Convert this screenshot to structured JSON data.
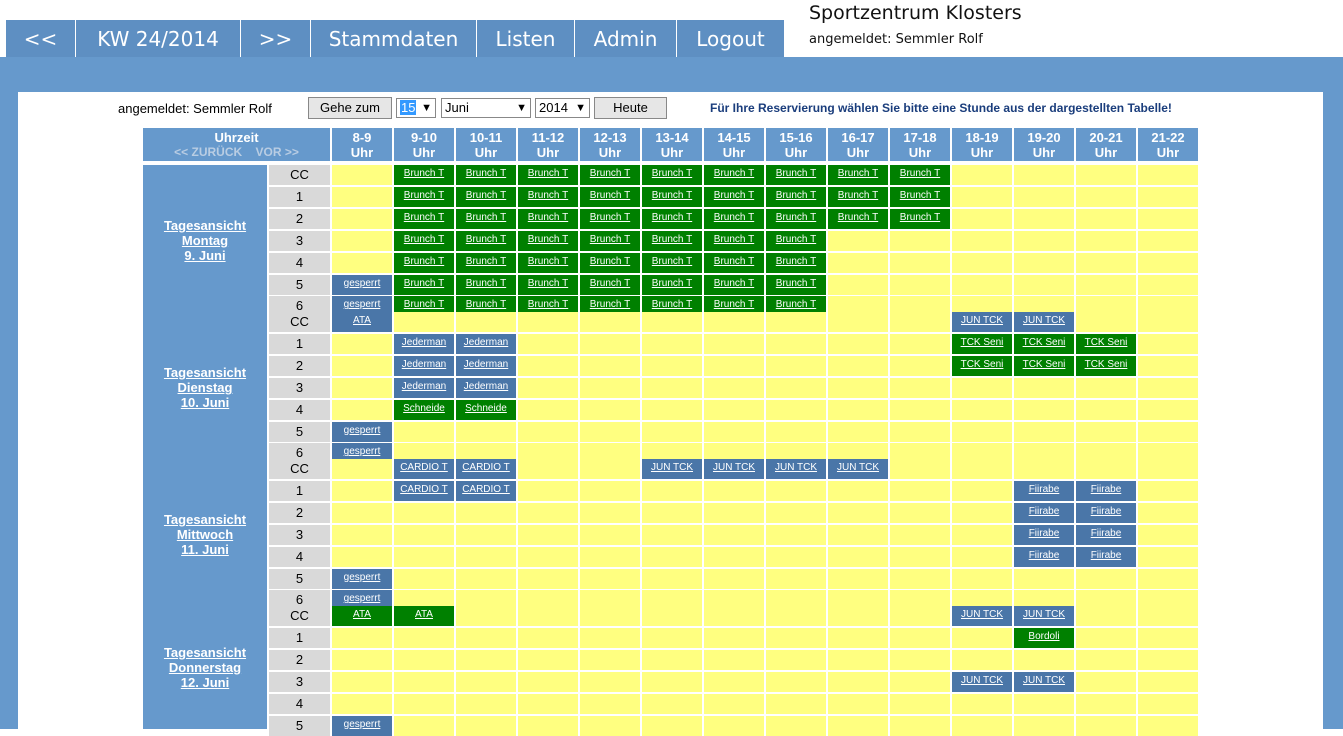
{
  "nav": {
    "prev": "<<",
    "week": "KW 24/2014",
    "next": ">>",
    "stammdaten": "Stammdaten",
    "listen": "Listen",
    "admin": "Admin",
    "logout": "Logout"
  },
  "site": {
    "title": "Sportzentrum Klosters",
    "user": "angemeldet: Semmler Rolf"
  },
  "controls": {
    "user": "angemeldet: Semmler Rolf",
    "goto_label": "Gehe zum",
    "day": "15",
    "month": "Juni",
    "year": "2014",
    "today_label": "Heute",
    "instruction": "Für Ihre Reservierung wählen Sie bitte eine Stunde aus der dargestellten Tabelle!"
  },
  "grid": {
    "time_header": "Uhrzeit",
    "back": "<< ZURÜCK",
    "forward": "VOR >>",
    "hours": [
      "8-9",
      "9-10",
      "10-11",
      "11-12",
      "12-13",
      "13-14",
      "14-15",
      "15-16",
      "16-17",
      "17-18",
      "18-19",
      "19-20",
      "20-21",
      "21-22"
    ],
    "hour_unit": "Uhr",
    "days": [
      {
        "label": [
          "Tagesansicht",
          "Montag",
          "9. Juni"
        ],
        "courts": [
          {
            "name": "CC",
            "res": [
              null,
              [
                "Brunch T",
                "g"
              ],
              [
                "Brunch T",
                "g"
              ],
              [
                "Brunch T",
                "g"
              ],
              [
                "Brunch T",
                "g"
              ],
              [
                "Brunch T",
                "g"
              ],
              [
                "Brunch T",
                "g"
              ],
              [
                "Brunch T",
                "g"
              ],
              [
                "Brunch T",
                "g"
              ],
              [
                "Brunch T",
                "g"
              ],
              null,
              null,
              null,
              null
            ]
          },
          {
            "name": "1",
            "res": [
              null,
              [
                "Brunch T",
                "g"
              ],
              [
                "Brunch T",
                "g"
              ],
              [
                "Brunch T",
                "g"
              ],
              [
                "Brunch T",
                "g"
              ],
              [
                "Brunch T",
                "g"
              ],
              [
                "Brunch T",
                "g"
              ],
              [
                "Brunch T",
                "g"
              ],
              [
                "Brunch T",
                "g"
              ],
              [
                "Brunch T",
                "g"
              ],
              null,
              null,
              null,
              null
            ]
          },
          {
            "name": "2",
            "res": [
              null,
              [
                "Brunch T",
                "g"
              ],
              [
                "Brunch T",
                "g"
              ],
              [
                "Brunch T",
                "g"
              ],
              [
                "Brunch T",
                "g"
              ],
              [
                "Brunch T",
                "g"
              ],
              [
                "Brunch T",
                "g"
              ],
              [
                "Brunch T",
                "g"
              ],
              [
                "Brunch T",
                "g"
              ],
              [
                "Brunch T",
                "g"
              ],
              null,
              null,
              null,
              null
            ]
          },
          {
            "name": "3",
            "res": [
              null,
              [
                "Brunch T",
                "g"
              ],
              [
                "Brunch T",
                "g"
              ],
              [
                "Brunch T",
                "g"
              ],
              [
                "Brunch T",
                "g"
              ],
              [
                "Brunch T",
                "g"
              ],
              [
                "Brunch T",
                "g"
              ],
              [
                "Brunch T",
                "g"
              ],
              null,
              null,
              null,
              null,
              null,
              null
            ]
          },
          {
            "name": "4",
            "res": [
              null,
              [
                "Brunch T",
                "g"
              ],
              [
                "Brunch T",
                "g"
              ],
              [
                "Brunch T",
                "g"
              ],
              [
                "Brunch T",
                "g"
              ],
              [
                "Brunch T",
                "g"
              ],
              [
                "Brunch T",
                "g"
              ],
              [
                "Brunch T",
                "g"
              ],
              null,
              null,
              null,
              null,
              null,
              null
            ]
          },
          {
            "name": "5",
            "res": [
              [
                "gesperrt",
                "b"
              ],
              [
                "Brunch T",
                "g"
              ],
              [
                "Brunch T",
                "g"
              ],
              [
                "Brunch T",
                "g"
              ],
              [
                "Brunch T",
                "g"
              ],
              [
                "Brunch T",
                "g"
              ],
              [
                "Brunch T",
                "g"
              ],
              [
                "Brunch T",
                "g"
              ],
              null,
              null,
              null,
              null,
              null,
              null
            ]
          },
          {
            "name": "6",
            "res": [
              [
                "gesperrt",
                "b"
              ],
              [
                "Brunch T",
                "g"
              ],
              [
                "Brunch T",
                "g"
              ],
              [
                "Brunch T",
                "g"
              ],
              [
                "Brunch T",
                "g"
              ],
              [
                "Brunch T",
                "g"
              ],
              [
                "Brunch T",
                "g"
              ],
              [
                "Brunch T",
                "g"
              ],
              null,
              null,
              null,
              null,
              null,
              null
            ]
          }
        ]
      },
      {
        "label": [
          "Tagesansicht",
          "Dienstag",
          "10. Juni"
        ],
        "courts": [
          {
            "name": "CC",
            "res": [
              [
                "ATA",
                "b"
              ],
              null,
              null,
              null,
              null,
              null,
              null,
              null,
              null,
              null,
              [
                "JUN TCK",
                "b"
              ],
              [
                "JUN TCK",
                "b"
              ],
              null,
              null
            ]
          },
          {
            "name": "1",
            "res": [
              null,
              [
                "Jederman",
                "b"
              ],
              [
                "Jederman",
                "b"
              ],
              null,
              null,
              null,
              null,
              null,
              null,
              null,
              [
                "TCK Seni",
                "g"
              ],
              [
                "TCK Seni",
                "g"
              ],
              [
                "TCK Seni",
                "g"
              ],
              null
            ]
          },
          {
            "name": "2",
            "res": [
              null,
              [
                "Jederman",
                "b"
              ],
              [
                "Jederman",
                "b"
              ],
              null,
              null,
              null,
              null,
              null,
              null,
              null,
              [
                "TCK Seni",
                "g"
              ],
              [
                "TCK Seni",
                "g"
              ],
              [
                "TCK Seni",
                "g"
              ],
              null
            ]
          },
          {
            "name": "3",
            "res": [
              null,
              [
                "Jederman",
                "b"
              ],
              [
                "Jederman",
                "b"
              ],
              null,
              null,
              null,
              null,
              null,
              null,
              null,
              null,
              null,
              null,
              null
            ]
          },
          {
            "name": "4",
            "res": [
              null,
              [
                "Schneide",
                "g"
              ],
              [
                "Schneide",
                "g"
              ],
              null,
              null,
              null,
              null,
              null,
              null,
              null,
              null,
              null,
              null,
              null
            ]
          },
          {
            "name": "5",
            "res": [
              [
                "gesperrt",
                "b"
              ],
              null,
              null,
              null,
              null,
              null,
              null,
              null,
              null,
              null,
              null,
              null,
              null,
              null
            ]
          },
          {
            "name": "6",
            "res": [
              [
                "gesperrt",
                "b"
              ],
              null,
              null,
              null,
              null,
              null,
              null,
              null,
              null,
              null,
              null,
              null,
              null,
              null
            ]
          }
        ]
      },
      {
        "label": [
          "Tagesansicht",
          "Mittwoch",
          "11. Juni"
        ],
        "courts": [
          {
            "name": "CC",
            "res": [
              null,
              [
                "CARDIO T",
                "b"
              ],
              [
                "CARDIO T",
                "b"
              ],
              null,
              null,
              [
                "JUN TCK",
                "b"
              ],
              [
                "JUN TCK",
                "b"
              ],
              [
                "JUN TCK",
                "b"
              ],
              [
                "JUN TCK",
                "b"
              ],
              null,
              null,
              null,
              null,
              null
            ]
          },
          {
            "name": "1",
            "res": [
              null,
              [
                "CARDIO T",
                "b"
              ],
              [
                "CARDIO T",
                "b"
              ],
              null,
              null,
              null,
              null,
              null,
              null,
              null,
              null,
              [
                "Fiirabe",
                "b"
              ],
              [
                "Fiirabe",
                "b"
              ],
              null
            ]
          },
          {
            "name": "2",
            "res": [
              null,
              null,
              null,
              null,
              null,
              null,
              null,
              null,
              null,
              null,
              null,
              [
                "Fiirabe",
                "b"
              ],
              [
                "Fiirabe",
                "b"
              ],
              null
            ]
          },
          {
            "name": "3",
            "res": [
              null,
              null,
              null,
              null,
              null,
              null,
              null,
              null,
              null,
              null,
              null,
              [
                "Fiirabe",
                "b"
              ],
              [
                "Fiirabe",
                "b"
              ],
              null
            ]
          },
          {
            "name": "4",
            "res": [
              null,
              null,
              null,
              null,
              null,
              null,
              null,
              null,
              null,
              null,
              null,
              [
                "Fiirabe",
                "b"
              ],
              [
                "Fiirabe",
                "b"
              ],
              null
            ]
          },
          {
            "name": "5",
            "res": [
              [
                "gesperrt",
                "b"
              ],
              null,
              null,
              null,
              null,
              null,
              null,
              null,
              null,
              null,
              null,
              null,
              null,
              null
            ]
          },
          {
            "name": "6",
            "res": [
              [
                "gesperrt",
                "b"
              ],
              null,
              null,
              null,
              null,
              null,
              null,
              null,
              null,
              null,
              null,
              null,
              null,
              null
            ]
          }
        ]
      },
      {
        "label": [
          "Tagesansicht",
          "Donnerstag",
          "12. Juni"
        ],
        "courts": [
          {
            "name": "CC",
            "res": [
              [
                "ATA",
                "g"
              ],
              [
                "ATA",
                "g"
              ],
              null,
              null,
              null,
              null,
              null,
              null,
              null,
              null,
              [
                "JUN TCK",
                "b"
              ],
              [
                "JUN TCK",
                "b"
              ],
              null,
              null
            ]
          },
          {
            "name": "1",
            "res": [
              null,
              null,
              null,
              null,
              null,
              null,
              null,
              null,
              null,
              null,
              null,
              [
                "Bordoli",
                "g"
              ],
              null,
              null
            ]
          },
          {
            "name": "2",
            "res": [
              null,
              null,
              null,
              null,
              null,
              null,
              null,
              null,
              null,
              null,
              null,
              null,
              null,
              null
            ]
          },
          {
            "name": "3",
            "res": [
              null,
              null,
              null,
              null,
              null,
              null,
              null,
              null,
              null,
              null,
              [
                "JUN TCK",
                "b"
              ],
              [
                "JUN TCK",
                "b"
              ],
              null,
              null
            ]
          },
          {
            "name": "4",
            "res": [
              null,
              null,
              null,
              null,
              null,
              null,
              null,
              null,
              null,
              null,
              null,
              null,
              null,
              null
            ]
          },
          {
            "name": "5",
            "res": [
              [
                "gesperrt",
                "b"
              ],
              null,
              null,
              null,
              null,
              null,
              null,
              null,
              null,
              null,
              null,
              null,
              null,
              null
            ]
          }
        ]
      }
    ]
  }
}
